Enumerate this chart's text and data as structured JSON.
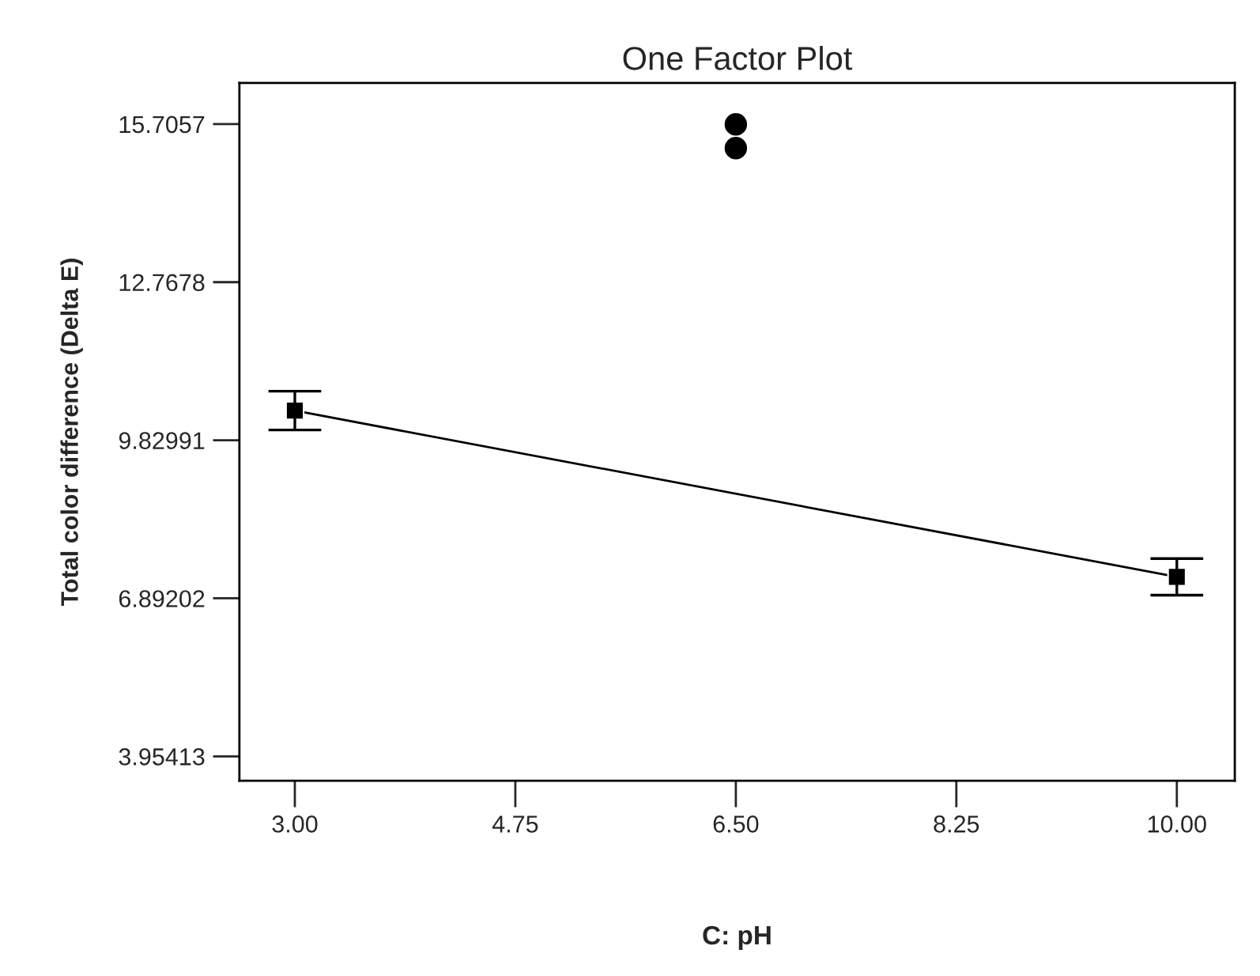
{
  "chart_data": {
    "type": "line",
    "title": "One Factor Plot",
    "xlabel": "C: pH",
    "ylabel": "Total color difference (Delta E)",
    "xlim": [
      2.56,
      10.46
    ],
    "xticks": [
      {
        "value": 3,
        "label": "3.00"
      },
      {
        "value": 4.75,
        "label": "4.75"
      },
      {
        "value": 6.5,
        "label": "6.50"
      },
      {
        "value": 8.25,
        "label": "8.25"
      },
      {
        "value": 10,
        "label": "10.00"
      }
    ],
    "ylim": [
      3.5,
      16.47
    ],
    "yticks": [
      3.95413,
      6.89202,
      9.82991,
      12.7678,
      15.7057
    ],
    "grid": false,
    "legend": false,
    "series": [
      {
        "color": "#000000",
        "x": [
          3,
          10
        ],
        "values": [
          10.38,
          7.29
        ],
        "errors": [
          0.36,
          0.34
        ],
        "marker": "square",
        "line_style": "solid"
      },
      {
        "type": "scatter",
        "color": "#000000",
        "x": [
          6.5,
          6.5
        ],
        "values": [
          15.7,
          15.26
        ],
        "marker": "circle"
      }
    ]
  }
}
